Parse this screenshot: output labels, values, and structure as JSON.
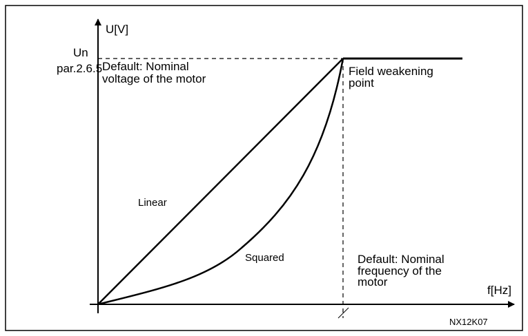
{
  "diagram": {
    "y_axis_label": "U[V]",
    "x_axis_label": "f[Hz]",
    "un_label": "Un",
    "par_label": "par.2.6.5",
    "voltage_note": [
      "Default: Nominal",
      "voltage of the motor"
    ],
    "field_weakening": [
      "Field weakening",
      "point"
    ],
    "linear_label": "Linear",
    "squared_label": "Squared",
    "frequency_note": [
      "Default: Nominal",
      "frequency of the",
      "motor"
    ],
    "figure_id": "NX12K07"
  }
}
